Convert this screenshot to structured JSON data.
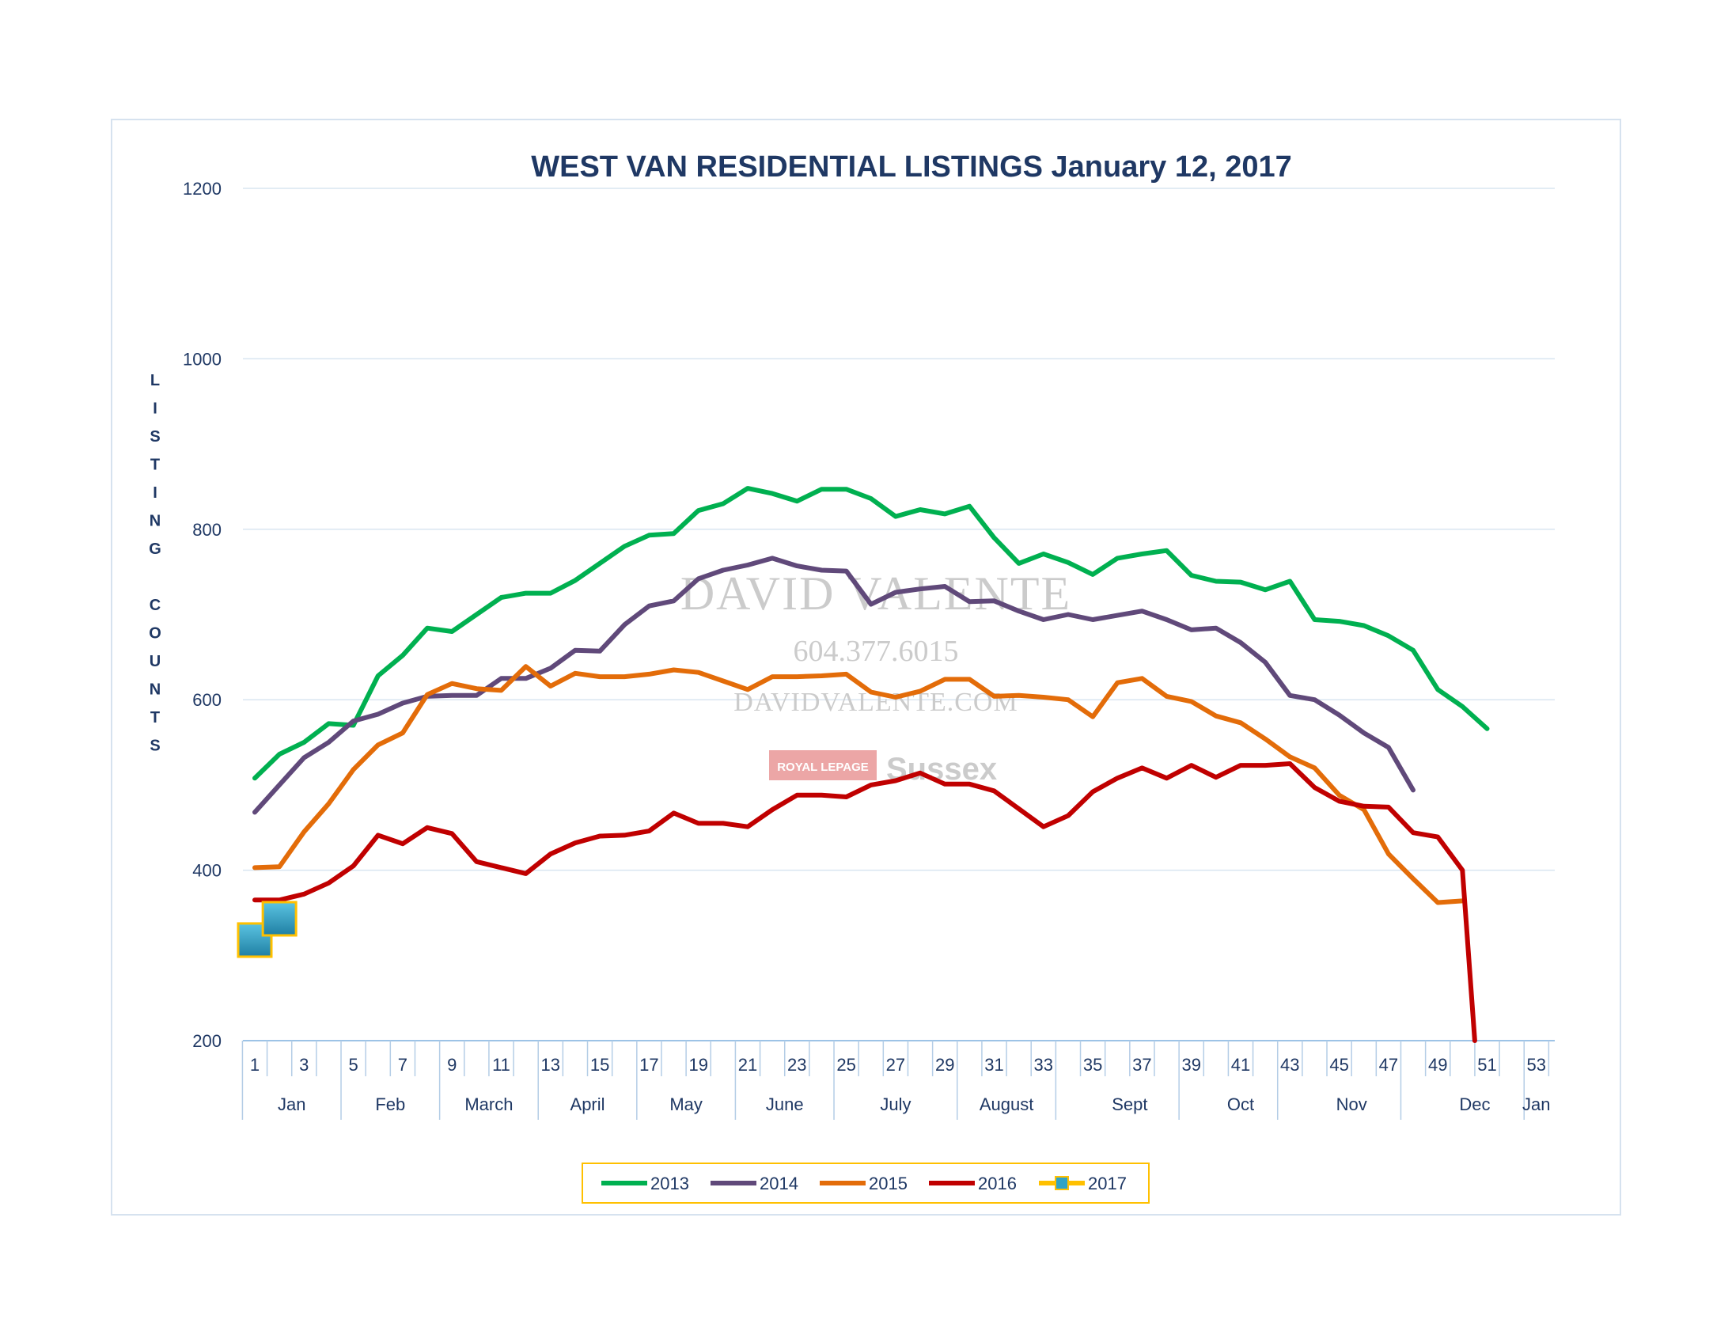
{
  "watermark": {
    "name": "DAVID VALENTE",
    "phone": "604.377.6015",
    "site": "DAVIDVALENTE.COM",
    "brand": "ROYAL LEPAGE",
    "office": "Sussex"
  },
  "chart_data": {
    "type": "line",
    "title": "WEST VAN RESIDENTIAL LISTINGS January 12, 2017",
    "ylabel": "LISTING COUNTS",
    "xlabel": "",
    "ylim": [
      200,
      1200
    ],
    "xlim": [
      1,
      53
    ],
    "grid": true,
    "legend_position": "bottom",
    "y_ticks": [
      "200",
      "400",
      "600",
      "800",
      "1000",
      "1200"
    ],
    "x_ticks": [
      "1",
      "3",
      "5",
      "7",
      "9",
      "11",
      "13",
      "15",
      "17",
      "19",
      "21",
      "23",
      "25",
      "27",
      "29",
      "31",
      "33",
      "35",
      "37",
      "39",
      "41",
      "43",
      "45",
      "47",
      "49",
      "51",
      "53"
    ],
    "months": [
      {
        "label": "Jan",
        "week": 2.5
      },
      {
        "label": "Feb",
        "week": 6.5
      },
      {
        "label": "March",
        "week": 10.5
      },
      {
        "label": "April",
        "week": 14.5
      },
      {
        "label": "May",
        "week": 18.5
      },
      {
        "label": "June",
        "week": 22.5
      },
      {
        "label": "July",
        "week": 27
      },
      {
        "label": "August",
        "week": 31.5
      },
      {
        "label": "Sept",
        "week": 36.5
      },
      {
        "label": "Oct",
        "week": 41
      },
      {
        "label": "Nov",
        "week": 45.5
      },
      {
        "label": "Dec",
        "week": 50.5
      },
      {
        "label": "Jan",
        "week": 53
      }
    ],
    "month_separators": [
      4.5,
      8.5,
      12.5,
      16.5,
      20.5,
      24.5,
      29.5,
      33.5,
      38.5,
      42.5,
      47.5,
      52.5
    ],
    "series": [
      {
        "name": "2013",
        "color": "#00b050",
        "marker": "none",
        "x": [
          1,
          2,
          3,
          4,
          5,
          6,
          7,
          8,
          9,
          10,
          11,
          12,
          13,
          14,
          15,
          16,
          17,
          18,
          19,
          20,
          21,
          22,
          23,
          24,
          25,
          26,
          27,
          28,
          29,
          30,
          31,
          32,
          33,
          34,
          35,
          36,
          37,
          38,
          39,
          40,
          41,
          42,
          43,
          44,
          45,
          46,
          47,
          48,
          49,
          50,
          51
        ],
        "values": [
          508,
          536,
          550,
          572,
          570,
          628,
          652,
          684,
          680,
          700,
          720,
          725,
          725,
          740,
          760,
          780,
          793,
          795,
          822,
          830,
          848,
          842,
          833,
          847,
          847,
          836,
          815,
          823,
          818,
          827,
          790,
          760,
          771,
          761,
          747,
          766,
          771,
          775,
          746,
          739,
          738,
          729,
          739,
          694,
          692,
          687,
          675,
          658,
          612,
          592,
          566
        ]
      },
      {
        "name": "2014",
        "color": "#60497a",
        "marker": "none",
        "x": [
          1,
          2,
          3,
          4,
          5,
          6,
          7,
          8,
          9,
          10,
          11,
          12,
          13,
          14,
          15,
          16,
          17,
          18,
          19,
          20,
          21,
          22,
          23,
          24,
          25,
          26,
          27,
          28,
          29,
          30,
          31,
          32,
          33,
          34,
          35,
          36,
          37,
          38,
          39,
          40,
          41,
          42,
          43,
          44,
          45,
          46,
          47,
          48
        ],
        "values": [
          468,
          500,
          532,
          550,
          575,
          583,
          596,
          604,
          605,
          605,
          625,
          625,
          637,
          658,
          657,
          688,
          710,
          716,
          742,
          752,
          758,
          766,
          757,
          752,
          751,
          712,
          726,
          730,
          733,
          715,
          716,
          704,
          694,
          700,
          694,
          699,
          704,
          694,
          682,
          684,
          667,
          644,
          605,
          600,
          582,
          561,
          544,
          494
        ]
      },
      {
        "name": "2015",
        "color": "#e36c09",
        "marker": "none",
        "x": [
          1,
          2,
          3,
          4,
          5,
          6,
          7,
          8,
          9,
          10,
          11,
          12,
          13,
          14,
          15,
          16,
          17,
          18,
          19,
          20,
          21,
          22,
          23,
          24,
          25,
          26,
          27,
          28,
          29,
          30,
          31,
          32,
          33,
          34,
          35,
          36,
          37,
          38,
          39,
          40,
          41,
          42,
          43,
          44,
          45,
          46,
          47,
          48,
          49,
          50
        ],
        "values": [
          403,
          404,
          445,
          478,
          518,
          547,
          561,
          606,
          619,
          613,
          611,
          639,
          616,
          631,
          627,
          627,
          630,
          635,
          632,
          622,
          612,
          627,
          627,
          628,
          630,
          609,
          603,
          610,
          624,
          624,
          604,
          605,
          603,
          600,
          580,
          620,
          625,
          604,
          598,
          581,
          573,
          554,
          533,
          520,
          488,
          471,
          419,
          390,
          362,
          364
        ]
      },
      {
        "name": "2016",
        "color": "#c00000",
        "marker": "none",
        "x": [
          1,
          2,
          3,
          4,
          5,
          6,
          7,
          8,
          9,
          10,
          11,
          12,
          13,
          14,
          15,
          16,
          17,
          18,
          19,
          20,
          21,
          22,
          23,
          24,
          25,
          26,
          27,
          28,
          29,
          30,
          31,
          32,
          33,
          34,
          35,
          36,
          37,
          38,
          39,
          40,
          41,
          42,
          43,
          44,
          45,
          46,
          47,
          48,
          49,
          50,
          50.5
        ],
        "values": [
          365,
          365,
          372,
          385,
          405,
          441,
          431,
          450,
          443,
          410,
          403,
          396,
          419,
          432,
          440,
          441,
          446,
          467,
          455,
          455,
          451,
          471,
          488,
          488,
          486,
          500,
          505,
          514,
          501,
          501,
          493,
          472,
          451,
          464,
          492,
          508,
          520,
          508,
          523,
          509,
          523,
          523,
          525,
          497,
          481,
          475,
          474,
          444,
          439,
          400,
          200
        ]
      },
      {
        "name": "2017",
        "color": "#ffc000",
        "marker": "square",
        "marker_color": "#31a3c6",
        "x": [
          1,
          2
        ],
        "values": [
          318,
          343
        ]
      }
    ]
  }
}
